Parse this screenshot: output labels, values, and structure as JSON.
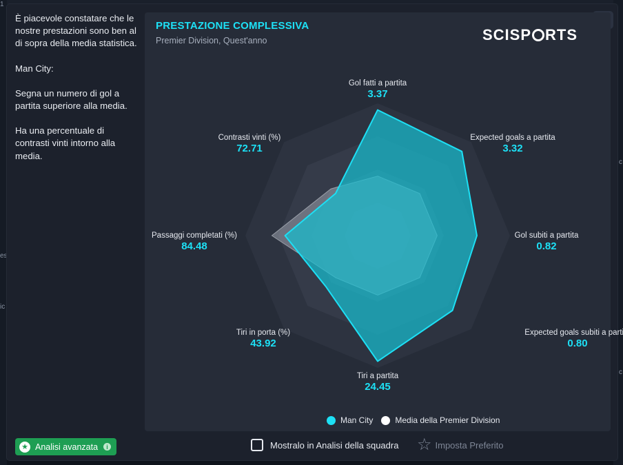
{
  "background": {
    "left_fragments": [
      "1",
      "es",
      "ic"
    ],
    "right_fragments": [
      "c",
      "c"
    ]
  },
  "analysis": {
    "paragraphs": [
      "È piacevole constatare che le nostre prestazioni sono ben al di sopra della media statistica.",
      "Man City:",
      "Segna un numero di gol a partita superiore alla media.",
      "Ha una percentuale di contrasti vinti intorno alla media."
    ]
  },
  "panel": {
    "title": "PRESTAZIONE COMPLESSIVA",
    "subtitle": "Premier Division, Quest'anno",
    "brand": {
      "pre": "SCISP",
      "post": "RTS"
    }
  },
  "chart_data": {
    "type": "radar",
    "axes": [
      {
        "name": "Gol fatti a partita",
        "value": "3.37"
      },
      {
        "name": "Expected goals a partita",
        "value": "3.32"
      },
      {
        "name": "Gol subiti a partita",
        "value": "0.82"
      },
      {
        "name": "Expected goals subiti a partita",
        "value": "0.80"
      },
      {
        "name": "Tiri a partita",
        "value": "24.45"
      },
      {
        "name": "Tiri in porta (%)",
        "value": "43.92"
      },
      {
        "name": "Passaggi completati (%)",
        "value": "84.48"
      },
      {
        "name": "Contrasti vinti (%)",
        "value": "72.71"
      }
    ],
    "series": [
      {
        "name": "Man City",
        "color": "#1de0f5",
        "levels": [
          0.95,
          0.9,
          0.75,
          0.8,
          0.95,
          0.55,
          0.7,
          0.45
        ]
      },
      {
        "name": "Media della Premier Division",
        "color": "#ffffff",
        "levels": [
          0.45,
          0.45,
          0.45,
          0.45,
          0.45,
          0.45,
          0.8,
          0.5
        ]
      }
    ],
    "rings": 4
  },
  "legend": [
    {
      "label": "Man City",
      "color": "#1de0f5"
    },
    {
      "label": "Media della Premier Division",
      "color": "#ffffff"
    }
  ],
  "footer": {
    "advanced_label": "Analisi avanzata",
    "show_label": "Mostralo in Analisi della squadra",
    "favorite_label": "Imposta Preferito"
  }
}
